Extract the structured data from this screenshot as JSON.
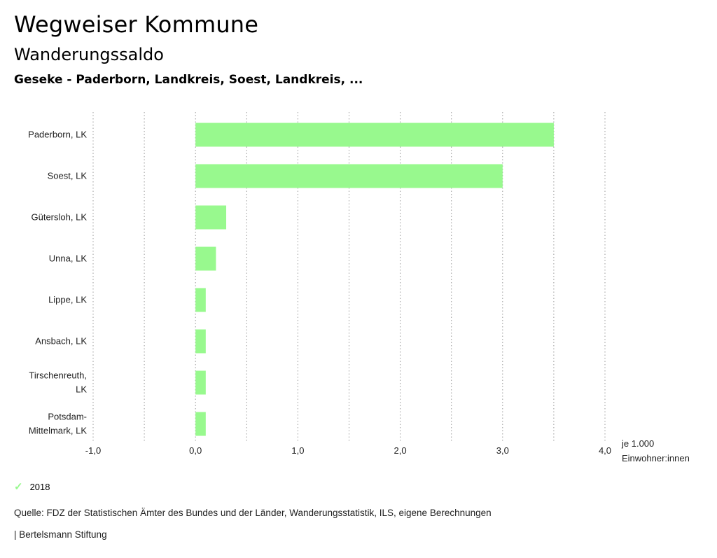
{
  "header": {
    "title": "Wegweiser Kommune",
    "subtitle": "Wanderungssaldo",
    "filter": "Geseke - Paderborn, Landkreis, Soest, Landkreis, ..."
  },
  "chart_data": {
    "type": "bar",
    "orientation": "horizontal",
    "categories": [
      [
        "Paderborn, LK"
      ],
      [
        "Soest, LK"
      ],
      [
        "Gütersloh, LK"
      ],
      [
        "Unna, LK"
      ],
      [
        "Lippe, LK"
      ],
      [
        "Ansbach, LK"
      ],
      [
        "Tirschenreuth,",
        "LK"
      ],
      [
        "Potsdam-",
        "Mittelmark, LK"
      ]
    ],
    "series": [
      {
        "name": "2018",
        "values": [
          3.5,
          3.0,
          0.3,
          0.2,
          0.1,
          0.1,
          0.1,
          0.1
        ]
      }
    ],
    "xlim": [
      -1.0,
      4.0
    ],
    "ticks": [
      -1.0,
      0.0,
      1.0,
      2.0,
      3.0,
      4.0
    ],
    "tick_labels": [
      "-1,0",
      "0,0",
      "1,0",
      "2,0",
      "3,0",
      "4,0"
    ],
    "unit_label": [
      "je 1.000",
      "Einwohner:innen"
    ],
    "grid": true,
    "bar_color": "#98f98e"
  },
  "legend": {
    "label": "2018",
    "color": "#98f98e"
  },
  "footer": {
    "source": "Quelle: FDZ der Statistischen Ämter des Bundes und der Länder, Wanderungsstatistik, ILS, eigene Berechnungen",
    "brand": "| Bertelsmann Stiftung"
  }
}
